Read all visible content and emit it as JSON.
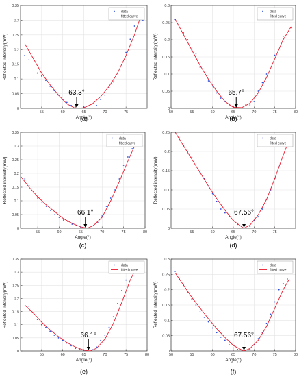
{
  "colors": {
    "data": "#2b4fd8",
    "fit": "#e8192c",
    "grid": "#e3e3e3",
    "axis": "#333333"
  },
  "chart_data": [
    {
      "panel": "(a)",
      "type": "scatter",
      "xlabel": "Angle(°)",
      "ylabel": "Reflected intensity(mW)",
      "xlim": [
        50,
        80
      ],
      "ylim": [
        0,
        0.35
      ],
      "xticks": [
        55,
        60,
        65,
        70,
        75
      ],
      "yticks": [
        0,
        0.05,
        0.1,
        0.15,
        0.2,
        0.25,
        0.3,
        0.35
      ],
      "legend": [
        "data",
        "fitted curve"
      ],
      "legend_position": "top-right",
      "grid": true,
      "annotation": {
        "text": "63.3°",
        "x": 63.3
      },
      "series": [
        {
          "name": "data",
          "kind": "points",
          "x": [
            51,
            52,
            54,
            55,
            56,
            57,
            58,
            59,
            60,
            61,
            62,
            63,
            64,
            65,
            66,
            67,
            68,
            69,
            70,
            71,
            72,
            73,
            74,
            75,
            76,
            77,
            78,
            79
          ],
          "y": [
            0.18,
            0.165,
            0.12,
            0.11,
            0.095,
            0.075,
            0.06,
            0.045,
            0.03,
            0.02,
            0.01,
            0.005,
            0.0,
            0.005,
            0.0,
            0.0,
            0.01,
            0.03,
            0.045,
            0.07,
            0.09,
            0.12,
            0.15,
            0.19,
            0.235,
            0.28,
            0.33,
            0.3
          ]
        },
        {
          "name": "fitted curve",
          "kind": "line",
          "x": [
            51,
            53,
            55,
            57,
            59,
            61,
            63,
            65,
            67,
            69,
            71,
            73,
            75,
            77,
            79
          ],
          "y": [
            0.22,
            0.17,
            0.12,
            0.08,
            0.045,
            0.015,
            0.0,
            0.002,
            0.015,
            0.04,
            0.075,
            0.12,
            0.18,
            0.25,
            0.335
          ]
        }
      ]
    },
    {
      "panel": "(b)",
      "type": "scatter",
      "xlabel": "Angle(°)",
      "ylabel": "Reflected intensity(mW)",
      "xlim": [
        50,
        80
      ],
      "ylim": [
        0,
        0.3
      ],
      "xticks": [
        50,
        55,
        60,
        65,
        70,
        75,
        80
      ],
      "yticks": [
        0,
        0.05,
        0.1,
        0.15,
        0.2,
        0.25,
        0.3
      ],
      "legend": [
        "data",
        "fitted curve"
      ],
      "legend_position": "top-right",
      "grid": true,
      "annotation": {
        "text": "65.7°",
        "x": 65.7
      },
      "series": [
        {
          "name": "data",
          "kind": "points",
          "x": [
            51,
            53,
            54,
            55,
            56,
            57,
            59,
            60,
            61,
            62,
            63,
            64,
            65,
            66,
            67,
            68,
            69,
            70,
            71,
            72,
            73,
            75,
            77,
            79
          ],
          "y": [
            0.26,
            0.22,
            0.2,
            0.17,
            0.16,
            0.12,
            0.08,
            0.065,
            0.045,
            0.03,
            0.02,
            0.01,
            0.005,
            0.0,
            0.0,
            0.01,
            0.01,
            0.02,
            0.05,
            0.075,
            0.1,
            0.155,
            0.21,
            0.235
          ]
        },
        {
          "name": "fitted curve",
          "kind": "line",
          "x": [
            51,
            53,
            55,
            57,
            59,
            61,
            63,
            65,
            67,
            69,
            71,
            73,
            75,
            77,
            79
          ],
          "y": [
            0.26,
            0.215,
            0.17,
            0.125,
            0.085,
            0.05,
            0.02,
            0.003,
            0.002,
            0.015,
            0.045,
            0.09,
            0.145,
            0.2,
            0.24
          ]
        }
      ]
    },
    {
      "panel": "(c)",
      "type": "scatter",
      "xlabel": "Angle(°)",
      "ylabel": "Reflected intensity(mW)",
      "xlim": [
        51,
        80
      ],
      "ylim": [
        0,
        0.35
      ],
      "xticks": [
        55,
        60,
        65,
        70,
        75,
        80
      ],
      "yticks": [
        0,
        0.05,
        0.1,
        0.15,
        0.2,
        0.25,
        0.3,
        0.35
      ],
      "legend": [
        "data",
        "fitted curve"
      ],
      "legend_position": "top-right",
      "grid": true,
      "annotation": {
        "text": "66.1°",
        "x": 66.1
      },
      "series": [
        {
          "name": "data",
          "kind": "points",
          "x": [
            52,
            53,
            55,
            56,
            57,
            58,
            59,
            60,
            61,
            62,
            63,
            64,
            65,
            66,
            67,
            68,
            69,
            70,
            71,
            72,
            73,
            74,
            75,
            76,
            77,
            78,
            79
          ],
          "y": [
            0.18,
            0.155,
            0.11,
            0.095,
            0.08,
            0.065,
            0.05,
            0.04,
            0.03,
            0.025,
            0.015,
            0.01,
            0.005,
            0.0,
            0.0,
            0.01,
            0.02,
            0.045,
            0.08,
            0.11,
            0.14,
            0.18,
            0.23,
            0.26,
            0.29,
            0.3,
            0.3
          ]
        },
        {
          "name": "fitted curve",
          "kind": "line",
          "x": [
            51,
            53,
            55,
            57,
            59,
            61,
            63,
            65,
            66.5,
            68,
            70,
            72,
            74,
            76,
            78,
            79
          ],
          "y": [
            0.19,
            0.15,
            0.115,
            0.085,
            0.06,
            0.035,
            0.018,
            0.005,
            0.0,
            0.01,
            0.04,
            0.1,
            0.17,
            0.245,
            0.315,
            0.335
          ]
        }
      ]
    },
    {
      "panel": "(d)",
      "type": "scatter",
      "xlabel": "Angle(°)",
      "ylabel": "Reflected intensity(mW)",
      "xlim": [
        50,
        80
      ],
      "ylim": [
        0,
        0.25
      ],
      "xticks": [
        55,
        60,
        65,
        70,
        75
      ],
      "yticks": [
        0,
        0.05,
        0.1,
        0.15,
        0.2,
        0.25
      ],
      "legend": [
        "data",
        "fitted curve"
      ],
      "legend_position": "top-right",
      "grid": true,
      "annotation": {
        "text": "67.56°",
        "x": 67.56
      },
      "series": [
        {
          "name": "data",
          "kind": "points",
          "x": [
            51,
            52,
            53,
            54,
            55,
            56,
            57,
            58,
            59,
            60,
            61,
            62,
            63,
            64,
            65,
            66,
            67,
            68,
            69,
            70,
            71,
            72,
            73,
            74,
            75,
            76,
            77,
            78,
            79
          ],
          "y": [
            0.255,
            0.235,
            0.215,
            0.2,
            0.185,
            0.165,
            0.145,
            0.13,
            0.11,
            0.09,
            0.07,
            0.05,
            0.04,
            0.03,
            0.02,
            0.01,
            0.005,
            0.0,
            0.005,
            0.02,
            0.03,
            0.05,
            0.075,
            0.1,
            0.13,
            0.16,
            0.215,
            0.23,
            0.24
          ]
        },
        {
          "name": "fitted curve",
          "kind": "line",
          "x": [
            51,
            53,
            55,
            57,
            59,
            61,
            63,
            65,
            67.5,
            69,
            71,
            73,
            75,
            77,
            79
          ],
          "y": [
            0.25,
            0.215,
            0.18,
            0.145,
            0.11,
            0.077,
            0.047,
            0.02,
            0.0,
            0.008,
            0.035,
            0.075,
            0.13,
            0.19,
            0.245
          ]
        }
      ]
    },
    {
      "panel": "(e)",
      "type": "scatter",
      "xlabel": "Angle(°)",
      "ylabel": "Reflected intensity(mW)",
      "xlim": [
        50,
        80
      ],
      "ylim": [
        0,
        0.35
      ],
      "xticks": [
        55,
        60,
        65,
        70,
        75,
        80
      ],
      "yticks": [
        0,
        0.05,
        0.1,
        0.15,
        0.2,
        0.25,
        0.3,
        0.35
      ],
      "legend": [
        "data",
        "fitted curve"
      ],
      "legend_position": "top-right",
      "grid": true,
      "annotation": {
        "text": "66.1°",
        "x": 66.1
      },
      "series": [
        {
          "name": "data",
          "kind": "points",
          "x": [
            52,
            53,
            54,
            55,
            56,
            57,
            58,
            59,
            60,
            61,
            62,
            63,
            64,
            65,
            66,
            67,
            68,
            69,
            70,
            71,
            72,
            73,
            74,
            75,
            76,
            77,
            78
          ],
          "y": [
            0.17,
            0.145,
            0.12,
            0.1,
            0.09,
            0.075,
            0.06,
            0.05,
            0.04,
            0.03,
            0.02,
            0.01,
            0.005,
            0.0,
            0.0,
            0.005,
            0.015,
            0.04,
            0.06,
            0.09,
            0.13,
            0.18,
            0.23,
            0.27,
            0.3,
            0.32,
            0.3
          ]
        },
        {
          "name": "fitted curve",
          "kind": "line",
          "x": [
            51,
            53,
            55,
            57,
            59,
            61,
            63,
            65,
            66.5,
            68,
            70,
            72,
            74,
            76,
            77.5,
            79
          ],
          "y": [
            0.175,
            0.145,
            0.11,
            0.08,
            0.055,
            0.032,
            0.015,
            0.003,
            0.0,
            0.01,
            0.045,
            0.105,
            0.185,
            0.27,
            0.32,
            0.305
          ]
        }
      ]
    },
    {
      "panel": "(f)",
      "type": "scatter",
      "xlabel": "Angle(°)",
      "ylabel": "Reflected intensity(mW)",
      "xlim": [
        50,
        80
      ],
      "ylim": [
        0,
        0.3
      ],
      "xticks": [
        50,
        55,
        60,
        65,
        70,
        75,
        80
      ],
      "yticks": [
        0,
        0.05,
        0.1,
        0.15,
        0.2,
        0.25,
        0.3
      ],
      "legend": [
        "data",
        "fitted curve"
      ],
      "legend_position": "top-right",
      "grid": true,
      "annotation": {
        "text": "67.56°",
        "x": 67.56
      },
      "series": [
        {
          "name": "data",
          "kind": "points",
          "x": [
            51,
            52,
            53,
            54,
            55,
            56,
            57,
            58,
            59,
            60,
            61,
            62,
            63,
            64,
            65,
            66,
            67,
            68,
            69,
            70,
            71,
            72,
            73,
            74,
            75,
            76,
            77,
            78
          ],
          "y": [
            0.26,
            0.235,
            0.215,
            0.19,
            0.17,
            0.15,
            0.13,
            0.11,
            0.095,
            0.075,
            0.06,
            0.045,
            0.035,
            0.02,
            0.01,
            0.005,
            0.0,
            0.0,
            0.005,
            0.02,
            0.04,
            0.06,
            0.09,
            0.12,
            0.16,
            0.2,
            0.22,
            0.235
          ]
        },
        {
          "name": "fitted curve",
          "kind": "line",
          "x": [
            51,
            53,
            55,
            57,
            59,
            61,
            63,
            65,
            67.5,
            69,
            71,
            73,
            75,
            77,
            78.5
          ],
          "y": [
            0.255,
            0.215,
            0.175,
            0.14,
            0.105,
            0.073,
            0.044,
            0.018,
            0.0,
            0.008,
            0.035,
            0.08,
            0.14,
            0.2,
            0.235
          ]
        }
      ]
    }
  ]
}
